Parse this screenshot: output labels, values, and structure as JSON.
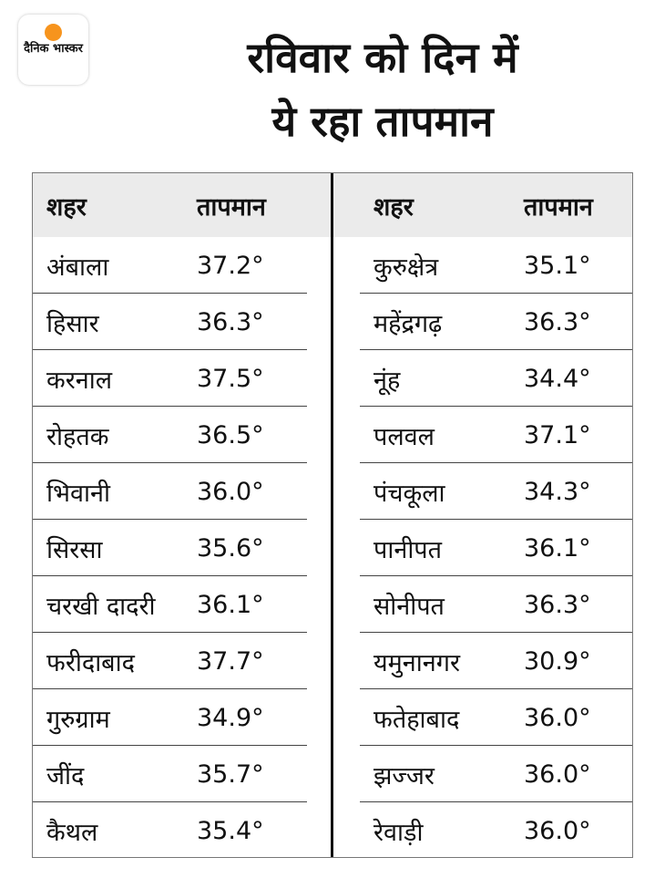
{
  "brand": {
    "logo_text": "दैनिक भास्कर",
    "accent": "#f7941d"
  },
  "title": {
    "line1": "रविवार को दिन में",
    "line2": "ये रहा तापमान"
  },
  "headers": {
    "city": "शहर",
    "temp": "तापमान"
  },
  "left": [
    {
      "city": "अंबाला",
      "temp": "37.2°"
    },
    {
      "city": "हिसार",
      "temp": "36.3°"
    },
    {
      "city": "करनाल",
      "temp": "37.5°"
    },
    {
      "city": "रोहतक",
      "temp": "36.5°"
    },
    {
      "city": "भिवानी",
      "temp": "36.0°"
    },
    {
      "city": "सिरसा",
      "temp": "35.6°"
    },
    {
      "city": "चरखी दादरी",
      "temp": "36.1°"
    },
    {
      "city": "फरीदाबाद",
      "temp": "37.7°"
    },
    {
      "city": "गुरुग्राम",
      "temp": "34.9°"
    },
    {
      "city": "जींद",
      "temp": "35.7°"
    },
    {
      "city": "कैथल",
      "temp": "35.4°"
    }
  ],
  "right": [
    {
      "city": "कुरुक्षेत्र",
      "temp": "35.1°"
    },
    {
      "city": "महेंद्रगढ़",
      "temp": "36.3°"
    },
    {
      "city": "नूंह",
      "temp": "34.4°"
    },
    {
      "city": "पलवल",
      "temp": "37.1°"
    },
    {
      "city": "पंचकूला",
      "temp": "34.3°"
    },
    {
      "city": "पानीपत",
      "temp": "36.1°"
    },
    {
      "city": "सोनीपत",
      "temp": "36.3°"
    },
    {
      "city": "यमुनानगर",
      "temp": "30.9°"
    },
    {
      "city": "फतेहाबाद",
      "temp": "36.0°"
    },
    {
      "city": "झज्जर",
      "temp": "36.0°"
    },
    {
      "city": "रेवाड़ी",
      "temp": "36.0°"
    }
  ]
}
